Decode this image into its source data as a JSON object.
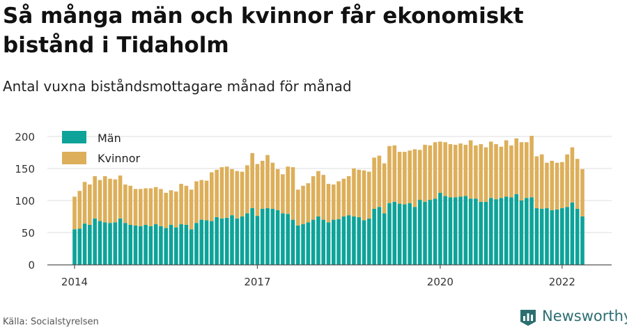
{
  "title": "Så många män och kvinnor får ekonomiskt bistånd i Tidaholm",
  "subtitle": "Antal vuxna biståndsmottagare månad för månad",
  "source": "Källa: Socialstyrelsen",
  "brand": "Newsworthy",
  "colors": {
    "men": "#0ea399",
    "women": "#ddaf5a",
    "grid": "#dcdcdc",
    "axis": "#555555",
    "brand": "#2c6e71"
  },
  "icons": {
    "logo": "newsworthy-logo-icon"
  },
  "chart_data": {
    "type": "bar",
    "stacked": true,
    "ylim": [
      0,
      200
    ],
    "yticks": [
      0,
      50,
      100,
      150,
      200
    ],
    "xticks": [
      "2014",
      "2017",
      "2020",
      "2022"
    ],
    "grid": true,
    "legend_position": "top-left",
    "months": [
      "2014-01",
      "2014-02",
      "2014-03",
      "2014-04",
      "2014-05",
      "2014-06",
      "2014-07",
      "2014-08",
      "2014-09",
      "2014-10",
      "2014-11",
      "2014-12",
      "2015-01",
      "2015-02",
      "2015-03",
      "2015-04",
      "2015-05",
      "2015-06",
      "2015-07",
      "2015-08",
      "2015-09",
      "2015-10",
      "2015-11",
      "2015-12",
      "2016-01",
      "2016-02",
      "2016-03",
      "2016-04",
      "2016-05",
      "2016-06",
      "2016-07",
      "2016-08",
      "2016-09",
      "2016-10",
      "2016-11",
      "2016-12",
      "2017-01",
      "2017-02",
      "2017-03",
      "2017-04",
      "2017-05",
      "2017-06",
      "2017-07",
      "2017-08",
      "2017-09",
      "2017-10",
      "2017-11",
      "2017-12",
      "2018-01",
      "2018-02",
      "2018-03",
      "2018-04",
      "2018-05",
      "2018-06",
      "2018-07",
      "2018-08",
      "2018-09",
      "2018-10",
      "2018-11",
      "2018-12",
      "2019-01",
      "2019-02",
      "2019-03",
      "2019-04",
      "2019-05",
      "2019-06",
      "2019-07",
      "2019-08",
      "2019-09",
      "2019-10",
      "2019-11",
      "2019-12",
      "2020-01",
      "2020-02",
      "2020-03",
      "2020-04",
      "2020-05",
      "2020-06",
      "2020-07",
      "2020-08",
      "2020-09",
      "2020-10",
      "2020-11",
      "2020-12",
      "2021-01",
      "2021-02",
      "2021-03",
      "2021-04",
      "2021-05",
      "2021-06",
      "2021-07",
      "2021-08",
      "2021-09",
      "2021-10",
      "2021-11",
      "2021-12",
      "2022-01",
      "2022-02",
      "2022-03",
      "2022-04",
      "2022-05"
    ],
    "series": [
      {
        "name": "Män",
        "values": [
          55,
          56,
          64,
          62,
          72,
          68,
          66,
          65,
          66,
          72,
          65,
          62,
          61,
          60,
          62,
          60,
          63,
          60,
          57,
          62,
          58,
          63,
          62,
          55,
          65,
          70,
          69,
          68,
          74,
          72,
          73,
          77,
          72,
          75,
          80,
          88,
          76,
          87,
          88,
          87,
          85,
          80,
          79,
          70,
          61,
          63,
          66,
          70,
          75,
          70,
          66,
          70,
          71,
          75,
          77,
          75,
          74,
          69,
          72,
          87,
          90,
          80,
          96,
          98,
          95,
          94,
          96,
          90,
          101,
          98,
          101,
          103,
          112,
          107,
          105,
          105,
          106,
          107,
          103,
          103,
          98,
          98,
          104,
          102,
          104,
          106,
          105,
          110,
          100,
          104,
          105,
          88,
          87,
          88,
          85,
          86,
          88,
          90,
          97,
          87,
          75
        ]
      },
      {
        "name": "Kvinnor",
        "values": [
          51,
          59,
          65,
          63,
          66,
          64,
          72,
          69,
          67,
          67,
          60,
          61,
          57,
          58,
          57,
          59,
          58,
          58,
          55,
          54,
          56,
          63,
          61,
          62,
          65,
          62,
          62,
          76,
          74,
          80,
          80,
          72,
          74,
          70,
          75,
          86,
          81,
          75,
          83,
          72,
          64,
          61,
          74,
          82,
          56,
          60,
          61,
          68,
          71,
          70,
          60,
          55,
          59,
          59,
          61,
          75,
          74,
          78,
          73,
          80,
          80,
          78,
          89,
          88,
          81,
          82,
          82,
          90,
          78,
          89,
          85,
          88,
          80,
          84,
          83,
          82,
          83,
          80,
          91,
          83,
          90,
          85,
          88,
          86,
          80,
          88,
          81,
          87,
          91,
          87,
          96,
          81,
          85,
          71,
          77,
          73,
          72,
          82,
          86,
          78,
          74
        ]
      }
    ]
  }
}
